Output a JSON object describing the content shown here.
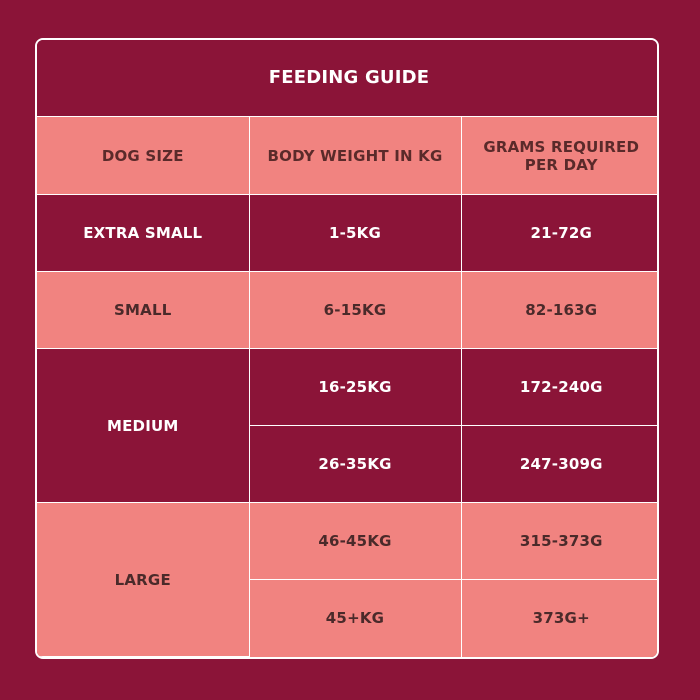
{
  "title": "FEEDING GUIDE",
  "headers": {
    "dog_size": "DOG SIZE",
    "body_weight": "BODY WEIGHT IN KG",
    "grams": "GRAMS REQUIRED PER DAY"
  },
  "rows": {
    "extra_small": {
      "size": "EXTRA SMALL",
      "weight": "1-5KG",
      "grams": "21-72G"
    },
    "small": {
      "size": "SMALL",
      "weight": "6-15KG",
      "grams": "82-163G"
    },
    "medium": {
      "size": "MEDIUM",
      "a": {
        "weight": "16-25KG",
        "grams": "172-240G"
      },
      "b": {
        "weight": "26-35KG",
        "grams": "247-309G"
      }
    },
    "large": {
      "size": "LARGE",
      "a": {
        "weight": "46-45KG",
        "grams": "315-373G"
      },
      "b": {
        "weight": "45+KG",
        "grams": "373G+"
      }
    }
  },
  "colors": {
    "background": "#8b1438",
    "pink_row": "#f18380",
    "border": "#ffffff"
  }
}
